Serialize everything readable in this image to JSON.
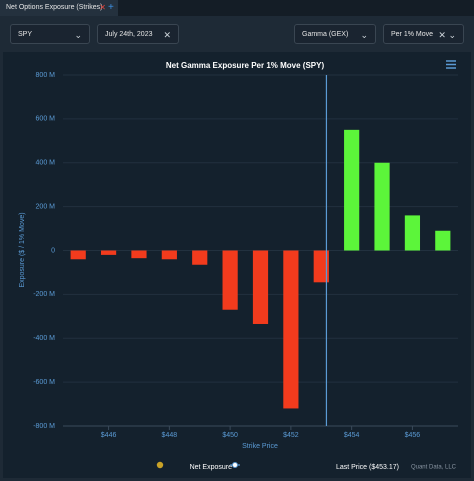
{
  "tab": {
    "title": "Net Options Exposure (Strikes)"
  },
  "controls": {
    "ticker": "SPY",
    "date": "July 24th, 2023",
    "greek": "Gamma (GEX)",
    "unit": "Per 1% Move"
  },
  "chart_data": {
    "type": "bar",
    "title": "Net Gamma Exposure Per 1% Move (SPY)",
    "ylabel": "Exposure ($ / 1% Move)",
    "xlabel": "Strike Price",
    "x": [
      445,
      446,
      447,
      448,
      449,
      450,
      451,
      452,
      453,
      454,
      455,
      456,
      457
    ],
    "series": [
      {
        "name": "Net Exposure",
        "color": "#c9a227",
        "values": [
          -40,
          -20,
          -35,
          -40,
          -65,
          -270,
          -335,
          -720,
          -145,
          550,
          400,
          160,
          90
        ]
      }
    ],
    "positive_color": "#5cf53a",
    "negative_color": "#f23b1d",
    "xlim": [
      444.5,
      457.5
    ],
    "xticks": [
      {
        "value": 446,
        "label": "$446"
      },
      {
        "value": 448,
        "label": "$448"
      },
      {
        "value": 450,
        "label": "$450"
      },
      {
        "value": 452,
        "label": "$452"
      },
      {
        "value": 454,
        "label": "$454"
      },
      {
        "value": 456,
        "label": "$456"
      }
    ],
    "ylim": [
      -800,
      800
    ],
    "yticks": [
      {
        "value": -800,
        "label": "-800 M"
      },
      {
        "value": -600,
        "label": "-600 M"
      },
      {
        "value": -400,
        "label": "-400 M"
      },
      {
        "value": -200,
        "label": "-200 M"
      },
      0,
      {
        "value": 200,
        "label": "200 M"
      },
      {
        "value": 400,
        "label": "400 M"
      },
      {
        "value": 600,
        "label": "600 M"
      },
      {
        "value": 800,
        "label": "800 M"
      }
    ],
    "grid": true,
    "last_price": {
      "value": 453.17,
      "label": "Last Price ($453.17)",
      "color": "#5b9bd5"
    },
    "credit": "Quant Data, LLC"
  }
}
